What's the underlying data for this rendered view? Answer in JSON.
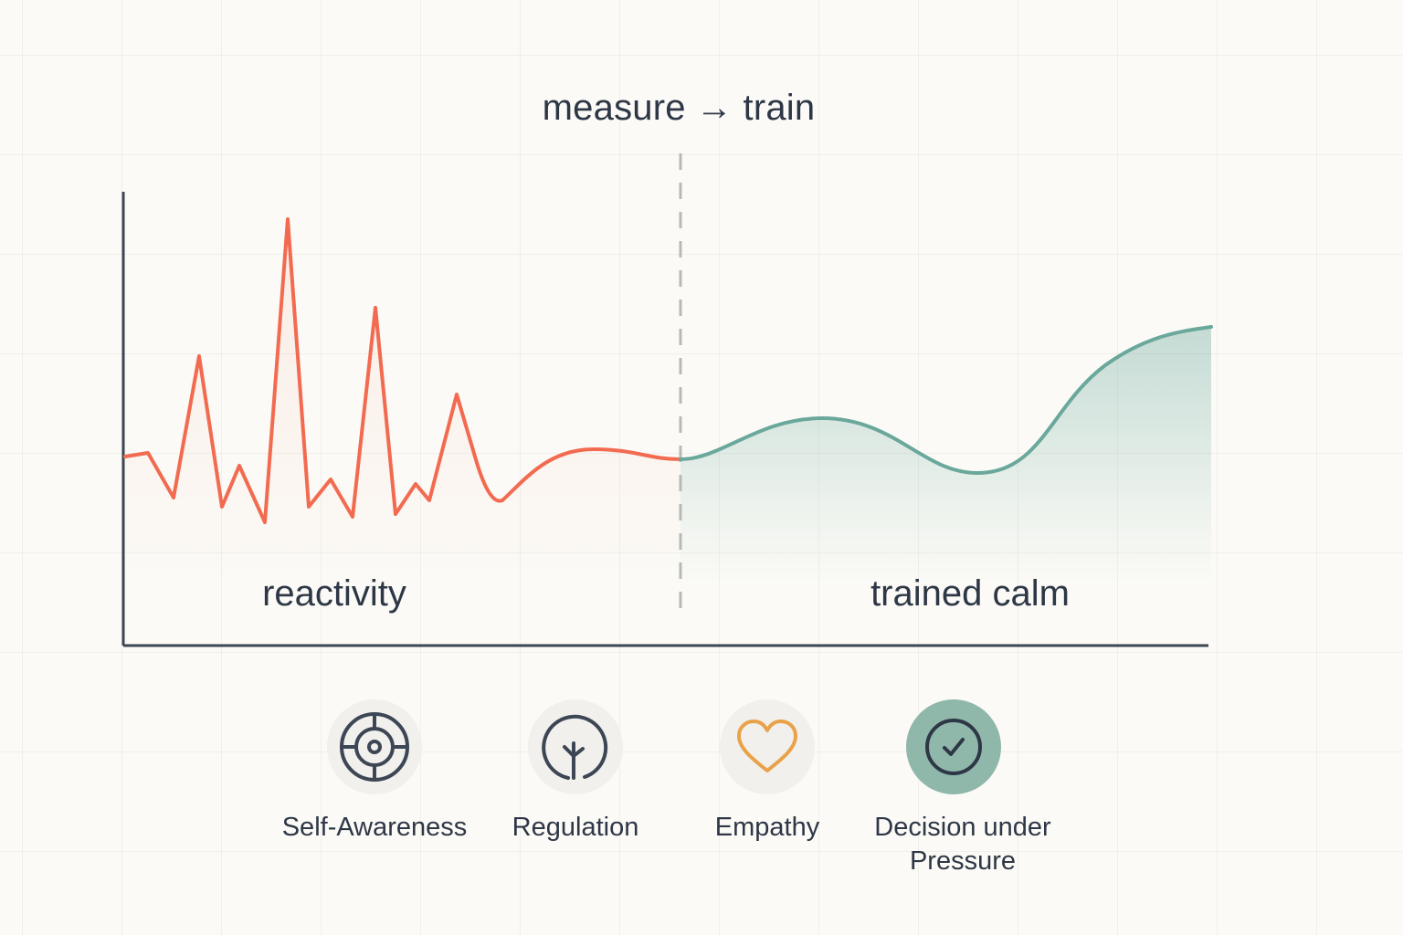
{
  "header": {
    "title": "measure → train"
  },
  "zones": {
    "left_label": "reactivity",
    "right_label": "trained calm"
  },
  "colors": {
    "reactive": "#f26b50",
    "calm": "#6aa89b",
    "axis": "#3d4654",
    "divider": "#b8b8b4",
    "empathy": "#e9a24a",
    "active_bg": "#8fb7aa"
  },
  "skills": [
    {
      "label": "Self-Awareness",
      "icon": "target-icon",
      "active": false
    },
    {
      "label": "Regulation",
      "icon": "sprout-icon",
      "active": false
    },
    {
      "label": "Empathy",
      "icon": "heart-icon",
      "active": false
    },
    {
      "label": "Decision under Pressure",
      "icon": "check-circle-icon",
      "active": true
    }
  ]
}
